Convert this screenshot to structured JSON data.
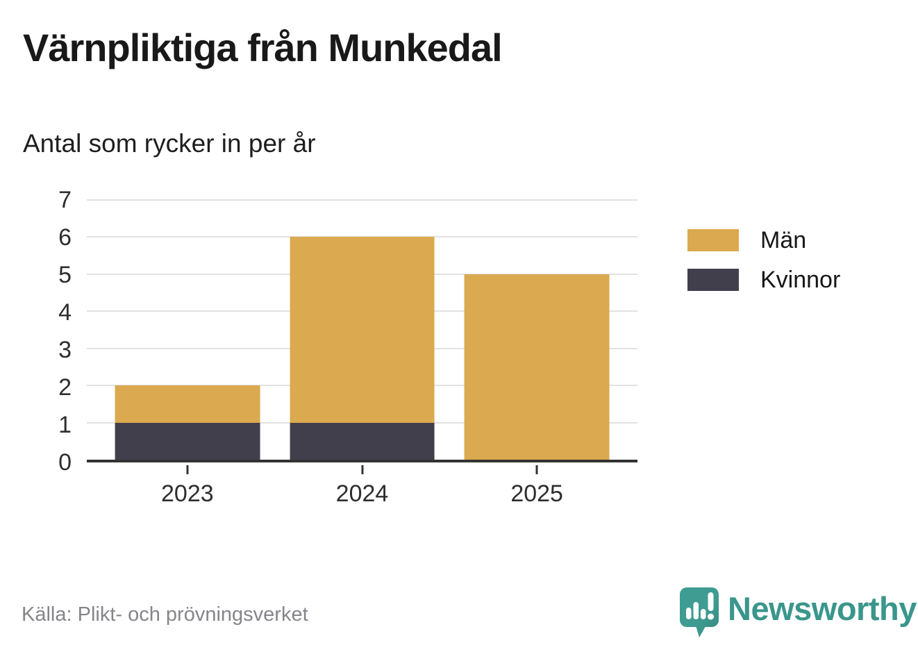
{
  "header": {
    "title": "Värnpliktiga från Munkedal",
    "subtitle": "Antal som rycker in per år"
  },
  "chart_data": {
    "type": "bar",
    "stacked": true,
    "title": "Värnpliktiga från Munkedal",
    "subtitle": "Antal som rycker in per år",
    "categories": [
      "2023",
      "2024",
      "2025"
    ],
    "series": [
      {
        "name": "Män",
        "color": "#dba94f",
        "values": [
          1,
          5,
          5
        ]
      },
      {
        "name": "Kvinnor",
        "color": "#423f4d",
        "values": [
          1,
          1,
          0
        ]
      }
    ],
    "stack_order_bottom_to_top": [
      "Kvinnor",
      "Män"
    ],
    "totals": [
      2,
      6,
      5
    ],
    "ylim": [
      0,
      7
    ],
    "yticks": [
      0,
      1,
      2,
      3,
      4,
      5,
      6,
      7
    ],
    "grid": "horizontal",
    "legend_position": "right"
  },
  "footer": {
    "source": "Källa: Plikt- och prövningsverket",
    "brand": "Newsworthy"
  },
  "colors": {
    "men": "#dba94f",
    "women": "#423f4d",
    "axis": "#333333",
    "gridline": "#e2e2e2",
    "tick_text": "#2e2e2e",
    "source_text": "#85858b",
    "brand_teal": "#3e9c92",
    "brand_teal_dark": "#35897f",
    "brand_text": "#3a968c"
  }
}
